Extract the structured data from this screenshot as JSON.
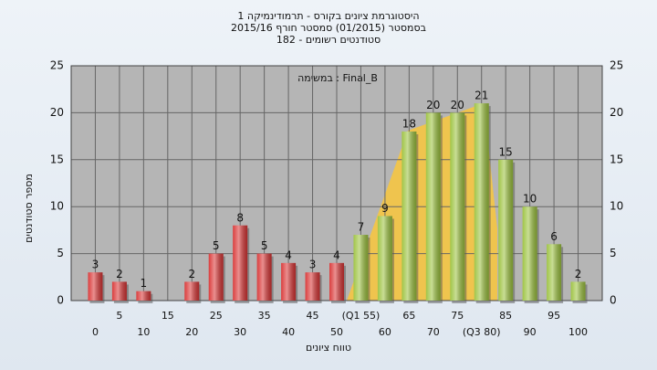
{
  "chart_data": {
    "type": "bar",
    "title": "היסטוגרמת ציונים בקורס - תרמודינמיקה 1",
    "subtitle": "בסמסטר  (01/2015)  סמסטר חורף 2015/16",
    "subtitle2": "סטודנטים רשומים - 182",
    "annotation": "במשימה : Final_B",
    "y_label": "מספר סטודנטים",
    "x_label": "טווח ציונים",
    "categories": [
      "0",
      "5",
      "10",
      "15",
      "20",
      "25",
      "30",
      "35",
      "40",
      "45",
      "50",
      "(Q1 55)",
      "60",
      "65",
      "70",
      "75",
      "(Q3 80)",
      "85",
      "90",
      "95",
      "100"
    ],
    "values": [
      3,
      2,
      1,
      0,
      2,
      5,
      8,
      5,
      4,
      3,
      4,
      7,
      9,
      18,
      20,
      20,
      21,
      15,
      10,
      6,
      2
    ],
    "colors": [
      "#d93434",
      "#d93434",
      "#d93434",
      "#d93434",
      "#d93434",
      "#d93434",
      "#d93434",
      "#d93434",
      "#d93434",
      "#d93434",
      "#d93434",
      "#9cc23e",
      "#9cc23e",
      "#9cc23e",
      "#9cc23e",
      "#9cc23e",
      "#9cc23e",
      "#9cc23e",
      "#9cc23e",
      "#9cc23e",
      "#9cc23e"
    ],
    "ylim": [
      0,
      25
    ],
    "yticks": [
      0,
      5,
      10,
      15,
      20,
      25
    ],
    "grid": true
  }
}
